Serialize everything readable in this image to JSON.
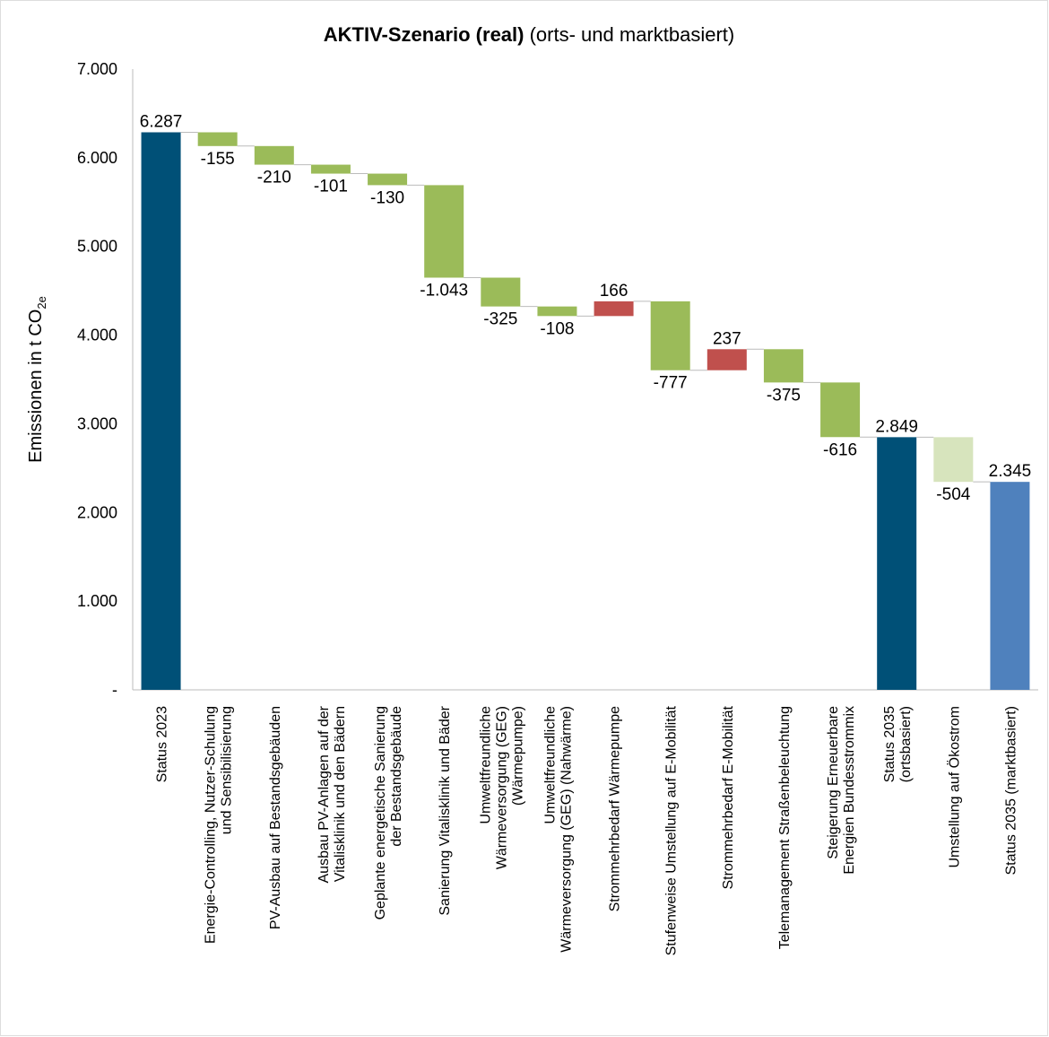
{
  "chart_data": {
    "type": "waterfall",
    "title": "AKTIV-Szenario (real)",
    "subtitle": "(orts- und marktbasiert)",
    "ylabel": [
      "Emissionen in t CO",
      "2e"
    ],
    "categories": [
      [
        "Status 2023"
      ],
      [
        "Energie-Controlling, Nutzer-Schulung",
        "und Sensibilisierung"
      ],
      [
        "PV-Ausbau auf Bestandsgebäuden"
      ],
      [
        "Ausbau PV-Anlagen auf der",
        "Vitalisklinik und den Bädern"
      ],
      [
        "Geplante energetische Sanierung",
        "der Bestandsgebäude"
      ],
      [
        "Sanierung Vitalisklinik und Bäder"
      ],
      [
        "Umweltfreundliche",
        "Wärmeversorgung (GEG)",
        "(Wärmepumpe)"
      ],
      [
        "Umweltfreundliche",
        "Wärmeversorgung (GEG) (Nahwärme)"
      ],
      [
        "Strommehrbedarf Wärmepumpe"
      ],
      [
        "Stufenweise Umstellung auf E-Mobilität"
      ],
      [
        "Strommehrbedarf E-Mobilität"
      ],
      [
        "Telemanagement Straßenbeleuchtung"
      ],
      [
        "Steigerung Erneuerbare",
        "Energien Bundesstrommix"
      ],
      [
        "Status 2035",
        "(ortsbasiert)"
      ],
      [
        "Umstellung auf Ökostrom"
      ],
      [
        "Status 2035 (marktbasiert)"
      ]
    ],
    "values": [
      6287,
      -155,
      -210,
      -101,
      -130,
      -1043,
      -325,
      -108,
      166,
      -777,
      237,
      -375,
      -616,
      2849,
      -504,
      2345
    ],
    "value_labels": [
      "6.287",
      "-155",
      "-210",
      "-101",
      "-130",
      "-1.043",
      "-325",
      "-108",
      "166",
      "-777",
      "237",
      "-375",
      "-616",
      "2.849",
      "-504",
      "2.345"
    ],
    "totals": [
      0,
      13,
      15
    ],
    "colors": [
      "#005077",
      "#9bbb59",
      "#9bbb59",
      "#9bbb59",
      "#9bbb59",
      "#9bbb59",
      "#9bbb59",
      "#9bbb59",
      "#c0504d",
      "#9bbb59",
      "#c0504d",
      "#9bbb59",
      "#9bbb59",
      "#005077",
      "#d7e4bd",
      "#4f81bd"
    ],
    "ylim": [
      0,
      7000
    ],
    "yticks": [
      {
        "value": 0,
        "label": "-"
      },
      {
        "value": 1000,
        "label": "1.000"
      },
      {
        "value": 2000,
        "label": "2.000"
      },
      {
        "value": 3000,
        "label": "3.000"
      },
      {
        "value": 4000,
        "label": "4.000"
      },
      {
        "value": 5000,
        "label": "5.000"
      },
      {
        "value": 6000,
        "label": "6.000"
      },
      {
        "value": 7000,
        "label": "7.000"
      }
    ]
  }
}
